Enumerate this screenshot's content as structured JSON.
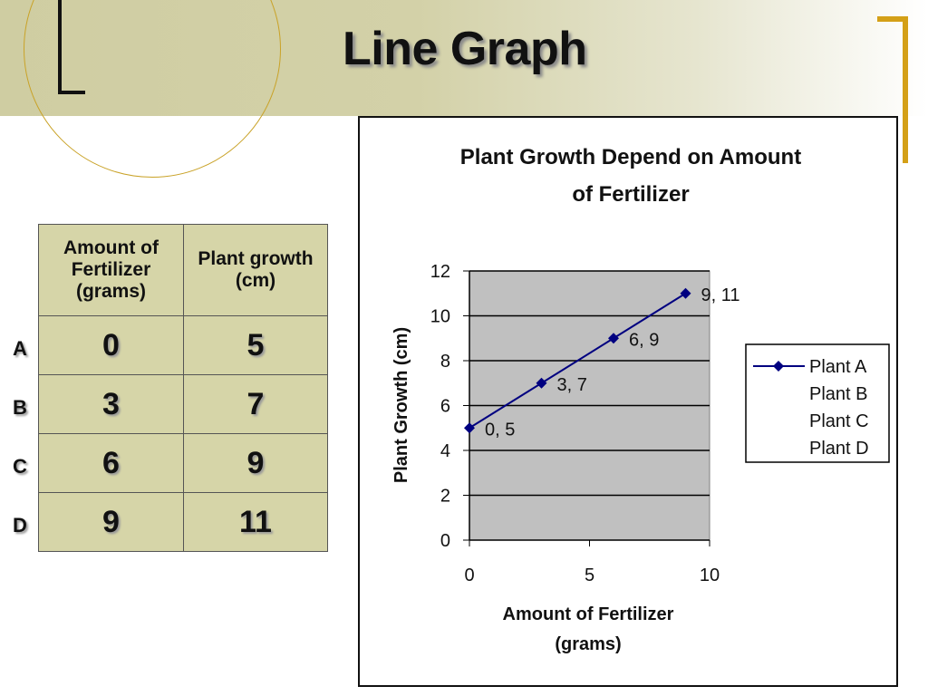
{
  "slide": {
    "title": "Line Graph"
  },
  "table": {
    "headers": [
      "Amount of Fertilizer (grams)",
      "Plant growth (cm)"
    ],
    "row_labels": [
      "A",
      "B",
      "C",
      "D"
    ],
    "rows": [
      [
        "0",
        "5"
      ],
      [
        "3",
        "7"
      ],
      [
        "6",
        "9"
      ],
      [
        "9",
        "11"
      ]
    ]
  },
  "chart_data": {
    "type": "line",
    "title": "Plant Growth Depend on Amount of Fertilizer",
    "title_lines": [
      "Plant Growth Depend on Amount",
      "of Fertilizer"
    ],
    "xlabel": "Amount of Fertilizer (grams)",
    "xlabel_lines": [
      "Amount of Fertilizer",
      "(grams)"
    ],
    "ylabel": "Plant Growth (cm)",
    "xlim": [
      0,
      10
    ],
    "ylim": [
      0,
      12
    ],
    "x_ticks": [
      0,
      5,
      10
    ],
    "y_ticks": [
      0,
      2,
      4,
      6,
      8,
      10,
      12
    ],
    "grid": "horizontal",
    "legend_position": "right",
    "legend": [
      "Plant A",
      "Plant B",
      "Plant C",
      "Plant D"
    ],
    "series": [
      {
        "name": "Plant A",
        "x": [
          0,
          3,
          6,
          9
        ],
        "y": [
          5,
          7,
          9,
          11
        ],
        "point_labels": [
          "0, 5",
          "3, 7",
          "6, 9",
          "9, 11"
        ]
      }
    ],
    "colors": {
      "series": "#000080",
      "plot_area": "#c0c0c0"
    }
  }
}
